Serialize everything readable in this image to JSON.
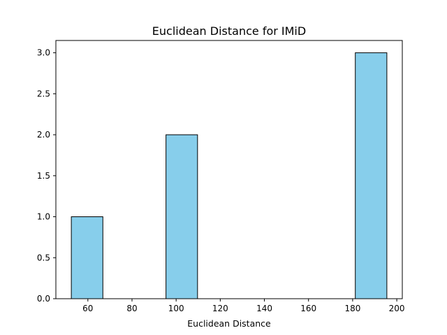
{
  "chart_data": {
    "type": "bar",
    "title": "Euclidean Distance for IMiD",
    "xlabel": "Euclidean Distance",
    "ylabel": "",
    "xlim": [
      45.5,
      202.5
    ],
    "ylim": [
      0,
      3.15
    ],
    "x_ticks": [
      60,
      80,
      100,
      120,
      140,
      160,
      180,
      200
    ],
    "y_ticks": [
      0.0,
      0.5,
      1.0,
      1.5,
      2.0,
      2.5,
      3.0
    ],
    "bins": [
      {
        "x0": 52.5,
        "x1": 66.8,
        "value": 1
      },
      {
        "x0": 66.8,
        "x1": 81.1,
        "value": 0
      },
      {
        "x0": 81.1,
        "x1": 95.4,
        "value": 0
      },
      {
        "x0": 95.4,
        "x1": 109.7,
        "value": 2
      },
      {
        "x0": 109.7,
        "x1": 124.0,
        "value": 0
      },
      {
        "x0": 124.0,
        "x1": 138.3,
        "value": 0
      },
      {
        "x0": 138.3,
        "x1": 152.6,
        "value": 0
      },
      {
        "x0": 152.6,
        "x1": 166.9,
        "value": 0
      },
      {
        "x0": 166.9,
        "x1": 181.2,
        "value": 0
      },
      {
        "x0": 181.2,
        "x1": 195.5,
        "value": 3
      }
    ],
    "bar_color": "#87CEEB",
    "edge_color": "#000000",
    "grid": false,
    "legend": "none"
  }
}
